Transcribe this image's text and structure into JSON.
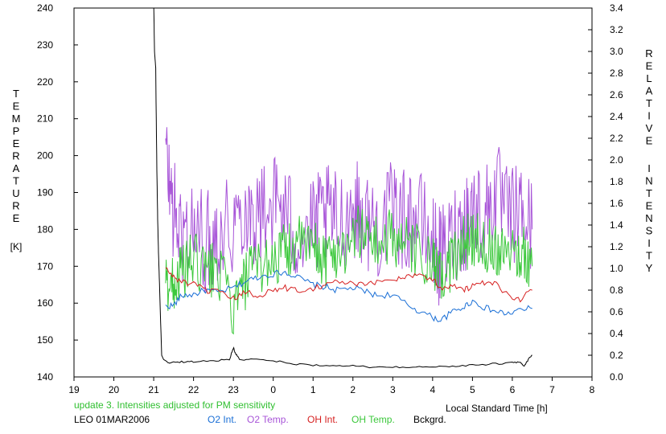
{
  "chart_data": {
    "type": "line",
    "xlabel": "Local Standard Time [h]",
    "xlim": [
      19,
      32
    ],
    "x_ticks": [
      19,
      20,
      21,
      22,
      23,
      24,
      25,
      26,
      27,
      28,
      29,
      30,
      31,
      32
    ],
    "x_tick_labels": [
      "19",
      "20",
      "21",
      "22",
      "23",
      "0",
      "1",
      "2",
      "3",
      "4",
      "5",
      "6",
      "7",
      "8"
    ],
    "left_axis": {
      "label_letters": [
        "T",
        "E",
        "M",
        "P",
        "E",
        "R",
        "A",
        "T",
        "U",
        "R",
        "E"
      ],
      "unit": "[K]",
      "ylim": [
        140,
        240
      ],
      "ticks": [
        "140",
        "150",
        "160",
        "170",
        "180",
        "190",
        "200",
        "210",
        "220",
        "230",
        "240"
      ]
    },
    "right_axis": {
      "label_letters_1": [
        "R",
        "E",
        "L",
        "A",
        "T",
        "I",
        "V",
        "E"
      ],
      "label_letters_2": [
        "I",
        "N",
        "T",
        "E",
        "N",
        "S",
        "I",
        "T",
        "Y"
      ],
      "ylim": [
        0.0,
        3.4
      ],
      "ticks": [
        "0.0",
        "0.2",
        "0.4",
        "0.6",
        "0.8",
        "1.0",
        "1.2",
        "1.4",
        "1.6",
        "1.8",
        "2.0",
        "2.2",
        "2.4",
        "2.6",
        "2.8",
        "3.0",
        "3.2",
        "3.4"
      ]
    },
    "annotation": "update 3. Intensities adjusted for PM sensitivity",
    "station_date": "LEO 01MAR2006",
    "colors": {
      "o2_int": "#1a6fd6",
      "o2_temp": "#a855d8",
      "oh_int": "#d62020",
      "oh_temp": "#3cc83c",
      "bckgrd": "#000000",
      "annotation": "#2fbf2f"
    },
    "series": [
      {
        "name": "O2 Int.",
        "axis": "right",
        "color": "#1a6fd6",
        "x": [
          21.3,
          21.5,
          21.7,
          22.0,
          22.3,
          22.6,
          23.0,
          23.3,
          23.6,
          24.0,
          24.3,
          24.6,
          25.0,
          25.3,
          25.6,
          26.0,
          26.3,
          26.6,
          27.0,
          27.3,
          27.6,
          28.0,
          28.2,
          28.5,
          28.8,
          29.0,
          29.3,
          29.6,
          29.9,
          30.2,
          30.5
        ],
        "y": [
          0.65,
          0.66,
          0.75,
          0.76,
          0.8,
          0.78,
          0.82,
          0.88,
          0.92,
          0.95,
          0.97,
          0.92,
          0.85,
          0.83,
          0.8,
          0.82,
          0.79,
          0.75,
          0.76,
          0.68,
          0.62,
          0.55,
          0.52,
          0.6,
          0.65,
          0.7,
          0.64,
          0.6,
          0.58,
          0.62,
          0.63
        ]
      },
      {
        "name": "O2 Temp.",
        "axis": "left",
        "color": "#a855d8",
        "x": [
          21.3,
          21.5,
          21.7,
          22.0,
          22.3,
          22.6,
          23.0,
          23.3,
          23.6,
          24.0,
          24.3,
          24.6,
          25.0,
          25.3,
          25.6,
          26.0,
          26.3,
          26.6,
          27.0,
          27.3,
          27.6,
          28.0,
          28.2,
          28.5,
          28.8,
          29.0,
          29.3,
          29.6,
          29.9,
          30.2,
          30.5
        ],
        "y": [
          200,
          185,
          178,
          180,
          176,
          180,
          182,
          186,
          183,
          188,
          185,
          178,
          180,
          184,
          182,
          186,
          183,
          180,
          185,
          182,
          184,
          176,
          172,
          178,
          182,
          186,
          184,
          190,
          183,
          185,
          180
        ],
        "noise_amplitude": 14
      },
      {
        "name": "OH Int.",
        "axis": "right",
        "color": "#d62020",
        "x": [
          21.3,
          21.5,
          21.7,
          22.0,
          22.3,
          22.6,
          23.0,
          23.3,
          23.6,
          24.0,
          24.3,
          24.6,
          25.0,
          25.3,
          25.6,
          26.0,
          26.3,
          26.6,
          27.0,
          27.3,
          27.6,
          28.0,
          28.2,
          28.5,
          28.8,
          29.0,
          29.3,
          29.6,
          29.9,
          30.2,
          30.5
        ],
        "y": [
          1.0,
          0.92,
          0.88,
          0.85,
          0.8,
          0.78,
          0.72,
          0.78,
          0.75,
          0.8,
          0.82,
          0.8,
          0.82,
          0.85,
          0.88,
          0.86,
          0.84,
          0.88,
          0.9,
          0.92,
          0.95,
          0.9,
          0.82,
          0.85,
          0.8,
          0.84,
          0.86,
          0.85,
          0.75,
          0.72,
          0.8
        ]
      },
      {
        "name": "OH Temp.",
        "axis": "left",
        "color": "#3cc83c",
        "x": [
          21.3,
          21.5,
          21.7,
          22.0,
          22.3,
          22.6,
          23.0,
          23.3,
          23.6,
          24.0,
          24.3,
          24.6,
          25.0,
          25.3,
          25.6,
          26.0,
          26.3,
          26.6,
          27.0,
          27.3,
          27.6,
          28.0,
          28.2,
          28.5,
          28.8,
          29.0,
          29.3,
          29.6,
          29.9,
          30.2,
          30.5
        ],
        "y": [
          165,
          166,
          168,
          172,
          168,
          170,
          158,
          166,
          170,
          172,
          174,
          176,
          175,
          172,
          174,
          178,
          180,
          176,
          178,
          176,
          174,
          170,
          166,
          172,
          176,
          178,
          176,
          175,
          176,
          174,
          170
        ],
        "noise_amplitude": 8
      },
      {
        "name": "Bckgrd.",
        "axis": "right",
        "color": "#000000",
        "x": [
          21.0,
          21.02,
          21.05,
          21.08,
          21.1,
          21.12,
          21.15,
          21.2,
          21.25,
          21.4,
          21.7,
          22.0,
          22.5,
          22.9,
          23.0,
          23.05,
          23.15,
          23.5,
          24.0,
          24.5,
          25.0,
          25.5,
          26.0,
          26.5,
          27.0,
          27.5,
          28.0,
          28.5,
          29.0,
          29.5,
          30.0,
          30.2,
          30.3,
          30.4,
          30.5
        ],
        "y": [
          3.5,
          3.0,
          2.85,
          1.9,
          1.45,
          1.15,
          0.8,
          0.2,
          0.16,
          0.13,
          0.14,
          0.14,
          0.15,
          0.16,
          0.27,
          0.22,
          0.16,
          0.16,
          0.15,
          0.12,
          0.11,
          0.1,
          0.1,
          0.09,
          0.09,
          0.09,
          0.09,
          0.1,
          0.11,
          0.12,
          0.13,
          0.14,
          0.1,
          0.16,
          0.2
        ]
      }
    ]
  }
}
